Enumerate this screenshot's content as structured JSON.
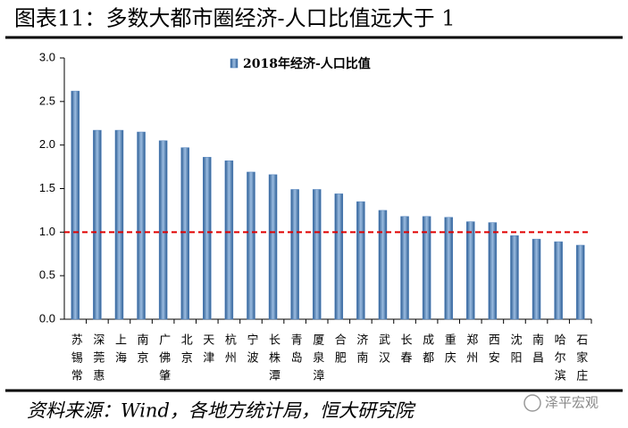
{
  "chart_data": {
    "type": "bar",
    "title": "图表11：多数大都市圈经济-人口比值远大于 1",
    "source": "资料来源：Wind，各地方统计局，恒大研究院",
    "watermark": "泽平宏观",
    "categories": [
      "苏锡常",
      "深莞惠",
      "上海",
      "南京",
      "广佛肇",
      "北京",
      "天津",
      "杭州",
      "宁波",
      "长株潭",
      "青岛",
      "厦泉漳",
      "合肥",
      "济南",
      "武汉",
      "长春",
      "成都",
      "重庆",
      "郑州",
      "西安",
      "沈阳",
      "南昌",
      "哈尔滨",
      "石家庄"
    ],
    "series": [
      {
        "name": "2018年经济-人口比值",
        "color": "#4f81bd",
        "values": [
          2.62,
          2.17,
          2.17,
          2.15,
          2.05,
          1.97,
          1.86,
          1.82,
          1.69,
          1.66,
          1.49,
          1.49,
          1.44,
          1.35,
          1.25,
          1.18,
          1.18,
          1.17,
          1.12,
          1.11,
          0.96,
          0.92,
          0.89,
          0.85
        ]
      }
    ],
    "ylim": [
      0,
      3
    ],
    "yticks": [
      {
        "value": 0,
        "label": "0.0"
      },
      {
        "value": 0.5,
        "label": "0.5"
      },
      {
        "value": 1,
        "label": "1.0"
      },
      {
        "value": 1.5,
        "label": "1.5"
      },
      {
        "value": 2,
        "label": "2.0"
      },
      {
        "value": 2.5,
        "label": "2.5"
      },
      {
        "value": 3,
        "label": "3.0"
      }
    ],
    "reference_line": {
      "value": 1,
      "color": "#e00000"
    },
    "legend": "top",
    "grid": false
  }
}
